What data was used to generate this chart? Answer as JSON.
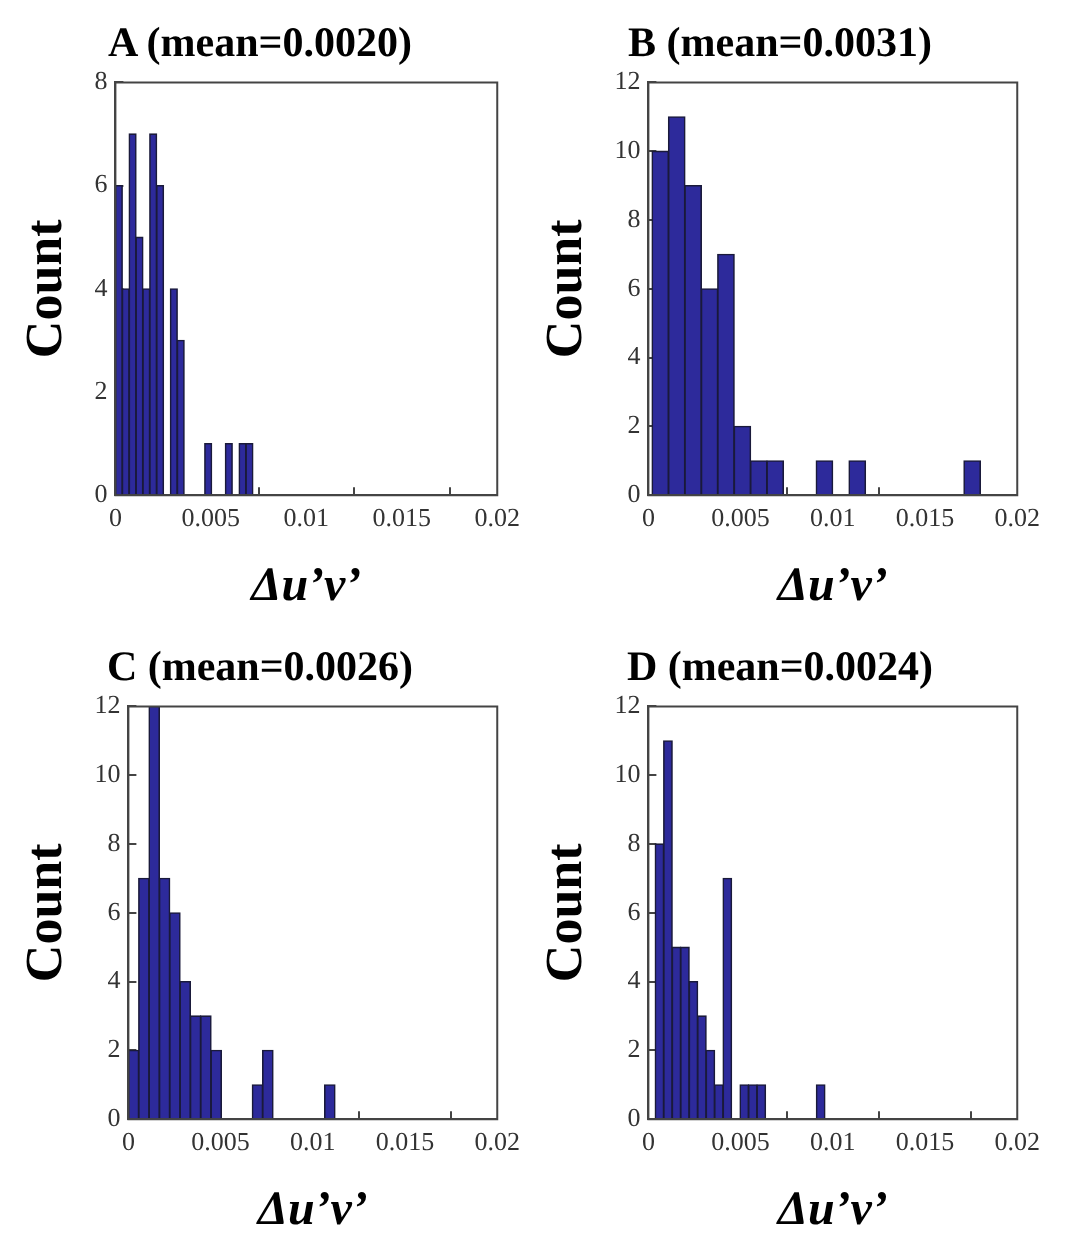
{
  "chart_data": [
    {
      "type": "histogram",
      "title": "A (mean=0.0020)",
      "xlabel": "Δu’v’",
      "ylabel": "Count",
      "color": "#2d2a9b",
      "grid": false,
      "bins": [
        0,
        0.00036,
        0.00072,
        0.00108,
        0.00144,
        0.0018,
        0.00216,
        0.00252,
        0.00288,
        0.00324,
        0.0036,
        0.00396,
        0.00432,
        0.00468,
        0.00504,
        0.0054,
        0.00576,
        0.00612,
        0.00648,
        0.00684,
        0.0072
      ],
      "values": [
        6,
        4,
        7,
        5,
        4,
        7,
        6,
        0,
        4,
        3,
        0,
        0,
        0,
        1,
        0,
        0,
        1,
        0,
        1,
        1
      ],
      "xlim": [
        0,
        0.02
      ],
      "xticks": [
        0,
        0.005,
        0.01,
        0.015,
        0.02
      ],
      "ylim": [
        0,
        8
      ],
      "yticks": [
        0,
        2,
        4,
        6,
        8
      ]
    },
    {
      "type": "histogram",
      "title": "B (mean=0.0031)",
      "xlabel": "Δu’v’",
      "ylabel": "Count",
      "color": "#2d2a9b",
      "grid": false,
      "bins": [
        0.0002,
        0.00109,
        0.00198,
        0.00287,
        0.00376,
        0.00465,
        0.00554,
        0.00643,
        0.00732,
        0.00821,
        0.0091,
        0.00999,
        0.01088,
        0.01177,
        0.01266,
        0.01355,
        0.01444,
        0.01533,
        0.01622,
        0.01711,
        0.018
      ],
      "values": [
        10,
        11,
        9,
        6,
        7,
        2,
        1,
        1,
        0,
        0,
        1,
        0,
        1,
        0,
        0,
        0,
        0,
        0,
        0,
        1
      ],
      "xlim": [
        0,
        0.02
      ],
      "xticks": [
        0,
        0.005,
        0.01,
        0.015,
        0.02
      ],
      "ylim": [
        0,
        12
      ],
      "yticks": [
        0,
        2,
        4,
        6,
        8,
        10,
        12
      ]
    },
    {
      "type": "histogram",
      "title": "C (mean=0.0026)",
      "xlabel": "Δu’v’",
      "ylabel": "Count",
      "color": "#2d2a9b",
      "grid": false,
      "bins": [
        0,
        0.00056,
        0.00112,
        0.00168,
        0.00224,
        0.0028,
        0.00336,
        0.00392,
        0.00448,
        0.00504,
        0.0056,
        0.00616,
        0.00672,
        0.00728,
        0.00784,
        0.0084,
        0.00896,
        0.00952,
        0.01008,
        0.01064,
        0.0112
      ],
      "values": [
        2,
        7,
        12,
        7,
        6,
        4,
        3,
        3,
        2,
        0,
        0,
        0,
        1,
        2,
        0,
        0,
        0,
        0,
        0,
        1
      ],
      "xlim": [
        0,
        0.02
      ],
      "xticks": [
        0,
        0.005,
        0.01,
        0.015,
        0.02
      ],
      "ylim": [
        0,
        12
      ],
      "yticks": [
        0,
        2,
        4,
        6,
        8,
        10,
        12
      ]
    },
    {
      "type": "histogram",
      "title": "D (mean=0.0024)",
      "xlabel": "Δu’v’",
      "ylabel": "Count",
      "color": "#2d2a9b",
      "grid": false,
      "bins": [
        0.00037,
        0.00083,
        0.00129,
        0.00175,
        0.00221,
        0.00267,
        0.00313,
        0.00359,
        0.00405,
        0.00451,
        0.00497,
        0.00543,
        0.00589,
        0.00635,
        0.00681,
        0.00727,
        0.00773,
        0.00819,
        0.00865,
        0.00911,
        0.00957
      ],
      "values": [
        8,
        11,
        5,
        5,
        4,
        3,
        2,
        1,
        7,
        0,
        1,
        1,
        1,
        0,
        0,
        0,
        0,
        0,
        0,
        1
      ],
      "xlim": [
        0,
        0.02
      ],
      "xticks": [
        0,
        0.005,
        0.01,
        0.015,
        0.02
      ],
      "ylim": [
        0,
        12
      ],
      "yticks": [
        0,
        2,
        4,
        6,
        8,
        10,
        12
      ]
    }
  ]
}
